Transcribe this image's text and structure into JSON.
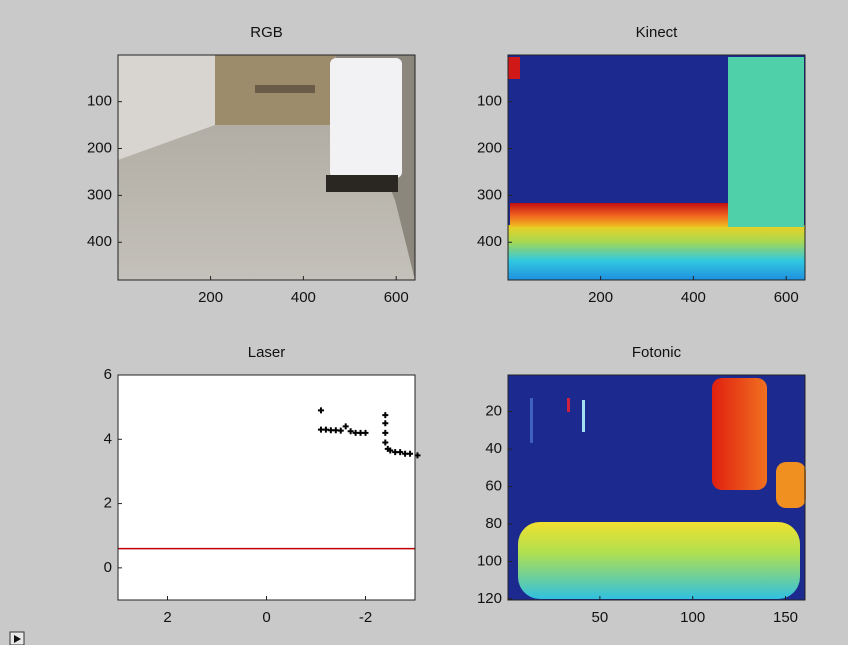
{
  "chart_data": [
    {
      "type": "image",
      "title": "RGB",
      "xlim": [
        0.5,
        640.5
      ],
      "ylim": [
        480.5,
        0.5
      ],
      "xticks": [
        200,
        400,
        600
      ],
      "yticks": [
        100,
        200,
        300,
        400
      ]
    },
    {
      "type": "image",
      "title": "Kinect",
      "xlim": [
        0.5,
        640.5
      ],
      "ylim": [
        480.5,
        0.5
      ],
      "xticks": [
        200,
        400,
        600
      ],
      "yticks": [
        100,
        200,
        300,
        400
      ]
    },
    {
      "type": "scatter",
      "title": "Laser",
      "xlim": [
        3,
        -3
      ],
      "ylim": [
        -1,
        6
      ],
      "xticks": [
        2,
        0,
        -2
      ],
      "yticks": [
        0,
        2,
        4,
        6
      ],
      "x": [
        -1.1,
        -1.1,
        -1.2,
        -1.3,
        -1.4,
        -1.5,
        -1.6,
        -1.7,
        -1.8,
        -1.9,
        -2.0,
        -2.4,
        -2.4,
        -2.4,
        -2.4,
        -2.45,
        -2.5,
        -2.6,
        -2.7,
        -2.8,
        -2.9,
        -3.05
      ],
      "values": [
        4.9,
        4.3,
        4.3,
        4.28,
        4.28,
        4.27,
        4.4,
        4.25,
        4.2,
        4.2,
        4.2,
        4.75,
        4.5,
        4.2,
        3.9,
        3.7,
        3.65,
        3.6,
        3.6,
        3.55,
        3.55,
        3.5
      ],
      "color": "#000000",
      "hline": 0.6,
      "hline_color": "#c00000"
    },
    {
      "type": "image",
      "title": "Fotonic",
      "xlim": [
        0.5,
        160.5
      ],
      "ylim": [
        120.5,
        0.5
      ],
      "xticks": [
        50,
        100,
        150
      ],
      "yticks": [
        20,
        40,
        60,
        80,
        100,
        120
      ]
    }
  ]
}
